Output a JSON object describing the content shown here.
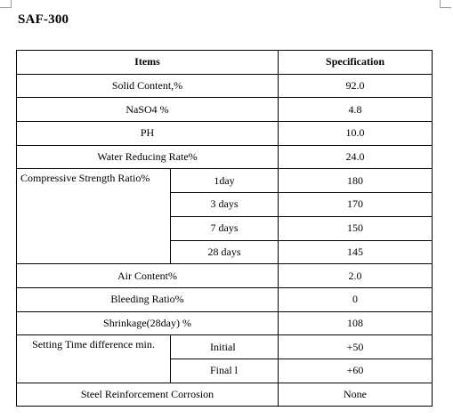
{
  "document": {
    "title": "SAF-300",
    "table": {
      "headers": {
        "items": "Items",
        "specification": "Specification"
      },
      "simple_rows_top": [
        {
          "item": "Solid Content,%",
          "value": "92.0"
        },
        {
          "item": "NaSO4 %",
          "value": "4.8"
        },
        {
          "item": "PH",
          "value": "10.0"
        },
        {
          "item": "Water Reducing Rate%",
          "value": "24.0"
        }
      ],
      "compressive": {
        "label": "Compressive Strength Ratio%",
        "rows": [
          {
            "sub": "1day",
            "value": "180"
          },
          {
            "sub": "3 days",
            "value": "170"
          },
          {
            "sub": "7 days",
            "value": "150"
          },
          {
            "sub": "28 days",
            "value": "145"
          }
        ]
      },
      "simple_rows_mid": [
        {
          "item": "Air Content%",
          "value": "2.0"
        },
        {
          "item": "Bleeding Ratio%",
          "value": "0"
        },
        {
          "item": "Shrinkage(28day) %",
          "value": "108"
        }
      ],
      "setting_time": {
        "label": "Setting Time difference min.",
        "rows": [
          {
            "sub": "Initial",
            "value": "+50"
          },
          {
            "sub": "Final l",
            "value": "+60"
          }
        ]
      },
      "last_row": {
        "item": "Steel Reinforcement Corrosion",
        "value": "None"
      }
    }
  }
}
